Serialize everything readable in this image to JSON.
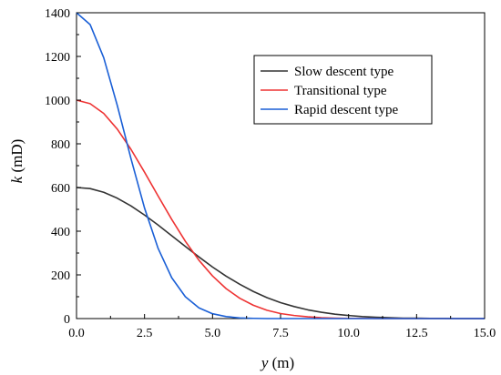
{
  "chart_data": {
    "type": "line",
    "title": "",
    "xlabel": {
      "var": "y",
      "unit": " (m)"
    },
    "ylabel": {
      "var": "k",
      "unit": " (mD)"
    },
    "xlim": [
      0,
      15
    ],
    "ylim": [
      0,
      1400
    ],
    "x_ticks": [
      "0.0",
      "2.5",
      "5.0",
      "7.5",
      "10.0",
      "12.5",
      "15.0"
    ],
    "y_ticks": [
      "0",
      "200",
      "400",
      "600",
      "800",
      "1000",
      "1200",
      "1400"
    ],
    "grid": false,
    "legend_position": "top-right",
    "series": [
      {
        "name": "Slow descent type",
        "color": "#333333",
        "x": [
          0,
          0.5,
          1,
          1.5,
          2,
          2.5,
          3,
          3.5,
          4,
          4.5,
          5,
          5.5,
          6,
          6.5,
          7,
          7.5,
          8,
          8.5,
          9,
          9.5,
          10,
          10.5,
          11,
          11.5,
          12,
          12.5,
          13,
          13.5,
          14,
          14.5,
          15
        ],
        "values": [
          600,
          595,
          578,
          551,
          516,
          474,
          428,
          379,
          330,
          282,
          236,
          194,
          157,
          124,
          96,
          73,
          55,
          40,
          29,
          20,
          14,
          9,
          6,
          4,
          2,
          2,
          1,
          1,
          0,
          0,
          0
        ]
      },
      {
        "name": "Transitional type",
        "color": "#ee3333",
        "x": [
          0,
          0.5,
          1,
          1.5,
          2,
          2.5,
          3,
          3.5,
          4,
          4.5,
          5,
          5.5,
          6,
          6.5,
          7,
          7.5,
          8,
          8.5,
          9,
          9.5,
          10,
          10.5,
          11,
          11.5,
          12,
          12.5,
          13,
          13.5,
          14,
          14.5,
          15
        ],
        "values": [
          1000,
          984,
          939,
          867,
          775,
          670,
          561,
          454,
          354,
          267,
          195,
          137,
          93,
          61,
          38,
          23,
          14,
          8,
          4,
          2,
          1,
          1,
          0,
          0,
          0,
          0,
          0,
          0,
          0,
          0,
          0
        ]
      },
      {
        "name": "Rapid descent type",
        "color": "#1a5fd6",
        "x": [
          0,
          0.5,
          1,
          1.5,
          2,
          2.5,
          3,
          3.5,
          4,
          4.5,
          5,
          5.5,
          6,
          6.5,
          7,
          7.5,
          8,
          8.5,
          9,
          9.5,
          10,
          10.5,
          11,
          11.5,
          12,
          12.5,
          13,
          13.5,
          14,
          14.5,
          15
        ],
        "values": [
          1400,
          1346,
          1194,
          975,
          733,
          506,
          321,
          187,
          100,
          49,
          22,
          9,
          3,
          1,
          0,
          0,
          0,
          0,
          0,
          0,
          0,
          0,
          0,
          0,
          0,
          0,
          0,
          0,
          0,
          0,
          0
        ]
      }
    ]
  }
}
